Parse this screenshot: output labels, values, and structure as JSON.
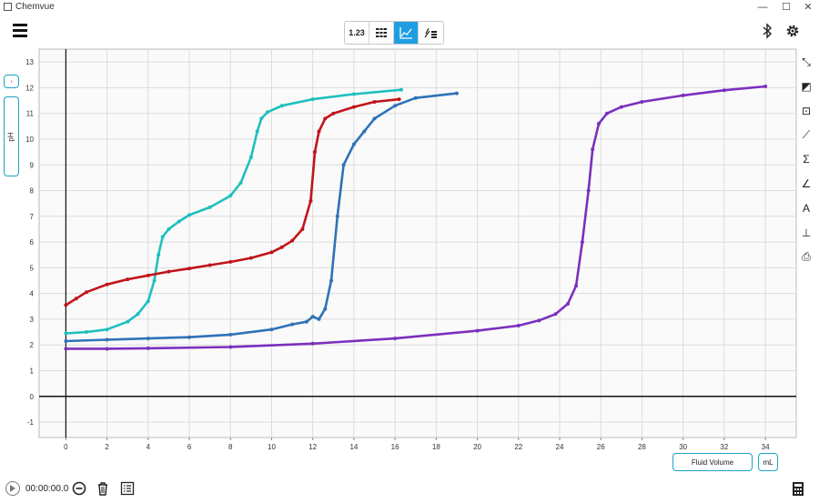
{
  "window": {
    "title": "Chemvue",
    "minimize": "—",
    "maximize": "☐",
    "close": "✕"
  },
  "toolbar": {
    "menu_icon": "hamburger-menu-icon",
    "modes": [
      {
        "label": "1.23",
        "icon": "meter-icon",
        "active": false
      },
      {
        "label": "",
        "icon": "table-icon",
        "active": false
      },
      {
        "label": "",
        "icon": "graph-icon",
        "active": true
      },
      {
        "label": "",
        "icon": "graph-table-icon",
        "active": false
      }
    ],
    "bluetooth_icon": "bluetooth-icon",
    "settings_icon": "gear-icon",
    "active_color": "#1e9ee0"
  },
  "graph": {
    "y_axis_label": "pH",
    "y_selector_label": "-",
    "x_axis_label": "Fluid Volume",
    "x_unit": "mL"
  },
  "right_tools": [
    "autoscale-icon",
    "select-region-icon",
    "zoom-fit-icon",
    "curve-fit-icon",
    "sum-icon",
    "tangent-icon",
    "annotate-icon",
    "add-axis-icon",
    "export-icon"
  ],
  "right_tool_glyphs": [
    "⤡",
    "◩",
    "⊡",
    "⟋",
    "Σ",
    "∠",
    "A",
    "⊥",
    "⎙"
  ],
  "bottom": {
    "timer": "00:00:00.0"
  },
  "chart_data": {
    "type": "line",
    "xlim": [
      -1.3,
      35.5
    ],
    "ylim": [
      -1.6,
      13.5
    ],
    "x_ticks": [
      0,
      2,
      4,
      6,
      8,
      10,
      12,
      14,
      16,
      18,
      20,
      22,
      24,
      26,
      28,
      30,
      32,
      34
    ],
    "y_ticks": [
      -1,
      0,
      1,
      2,
      3,
      4,
      5,
      6,
      7,
      8,
      9,
      10,
      11,
      12,
      13
    ],
    "grid": true,
    "series": [
      {
        "color": "#1fbfbf",
        "x": [
          0,
          1,
          2,
          3,
          3.5,
          4,
          4.3,
          4.5,
          4.7,
          5,
          5.5,
          6,
          7,
          8,
          8.5,
          9,
          9.3,
          9.5,
          9.8,
          10.5,
          12,
          14,
          16.3
        ],
        "y": [
          2.45,
          2.5,
          2.6,
          2.9,
          3.2,
          3.7,
          4.5,
          5.5,
          6.2,
          6.5,
          6.8,
          7.05,
          7.35,
          7.8,
          8.3,
          9.3,
          10.3,
          10.8,
          11.05,
          11.3,
          11.55,
          11.75,
          11.92
        ]
      },
      {
        "color": "#c0141b",
        "x": [
          0,
          0.5,
          1,
          2,
          3,
          4,
          5,
          6,
          7,
          8,
          9,
          10,
          10.5,
          11,
          11.5,
          11.9,
          12.1,
          12.3,
          12.6,
          13,
          14,
          15,
          16.2
        ],
        "y": [
          3.55,
          3.8,
          4.05,
          4.35,
          4.55,
          4.7,
          4.85,
          4.97,
          5.1,
          5.23,
          5.38,
          5.6,
          5.8,
          6.05,
          6.5,
          7.6,
          9.5,
          10.3,
          10.8,
          11.0,
          11.25,
          11.45,
          11.55
        ]
      },
      {
        "color": "#2e73b8",
        "x": [
          0,
          2,
          4,
          6,
          8,
          10,
          11,
          11.7,
          12,
          12.3,
          12.6,
          12.9,
          13.2,
          13.5,
          14,
          14.5,
          15,
          16,
          17,
          19
        ],
        "y": [
          2.15,
          2.2,
          2.25,
          2.3,
          2.4,
          2.6,
          2.8,
          2.9,
          3.1,
          3.0,
          3.4,
          4.5,
          7.0,
          9.0,
          9.8,
          10.3,
          10.8,
          11.3,
          11.6,
          11.78
        ]
      },
      {
        "color": "#7b2fbe",
        "x": [
          0,
          2,
          4,
          8,
          12,
          16,
          20,
          22,
          23,
          23.8,
          24.4,
          24.8,
          25.1,
          25.4,
          25.6,
          25.9,
          26.3,
          27,
          28,
          30,
          32,
          34
        ],
        "y": [
          1.85,
          1.85,
          1.87,
          1.92,
          2.05,
          2.25,
          2.55,
          2.75,
          2.95,
          3.2,
          3.6,
          4.3,
          6.0,
          8.0,
          9.6,
          10.6,
          11.0,
          11.25,
          11.45,
          11.7,
          11.9,
          12.05
        ]
      }
    ]
  }
}
